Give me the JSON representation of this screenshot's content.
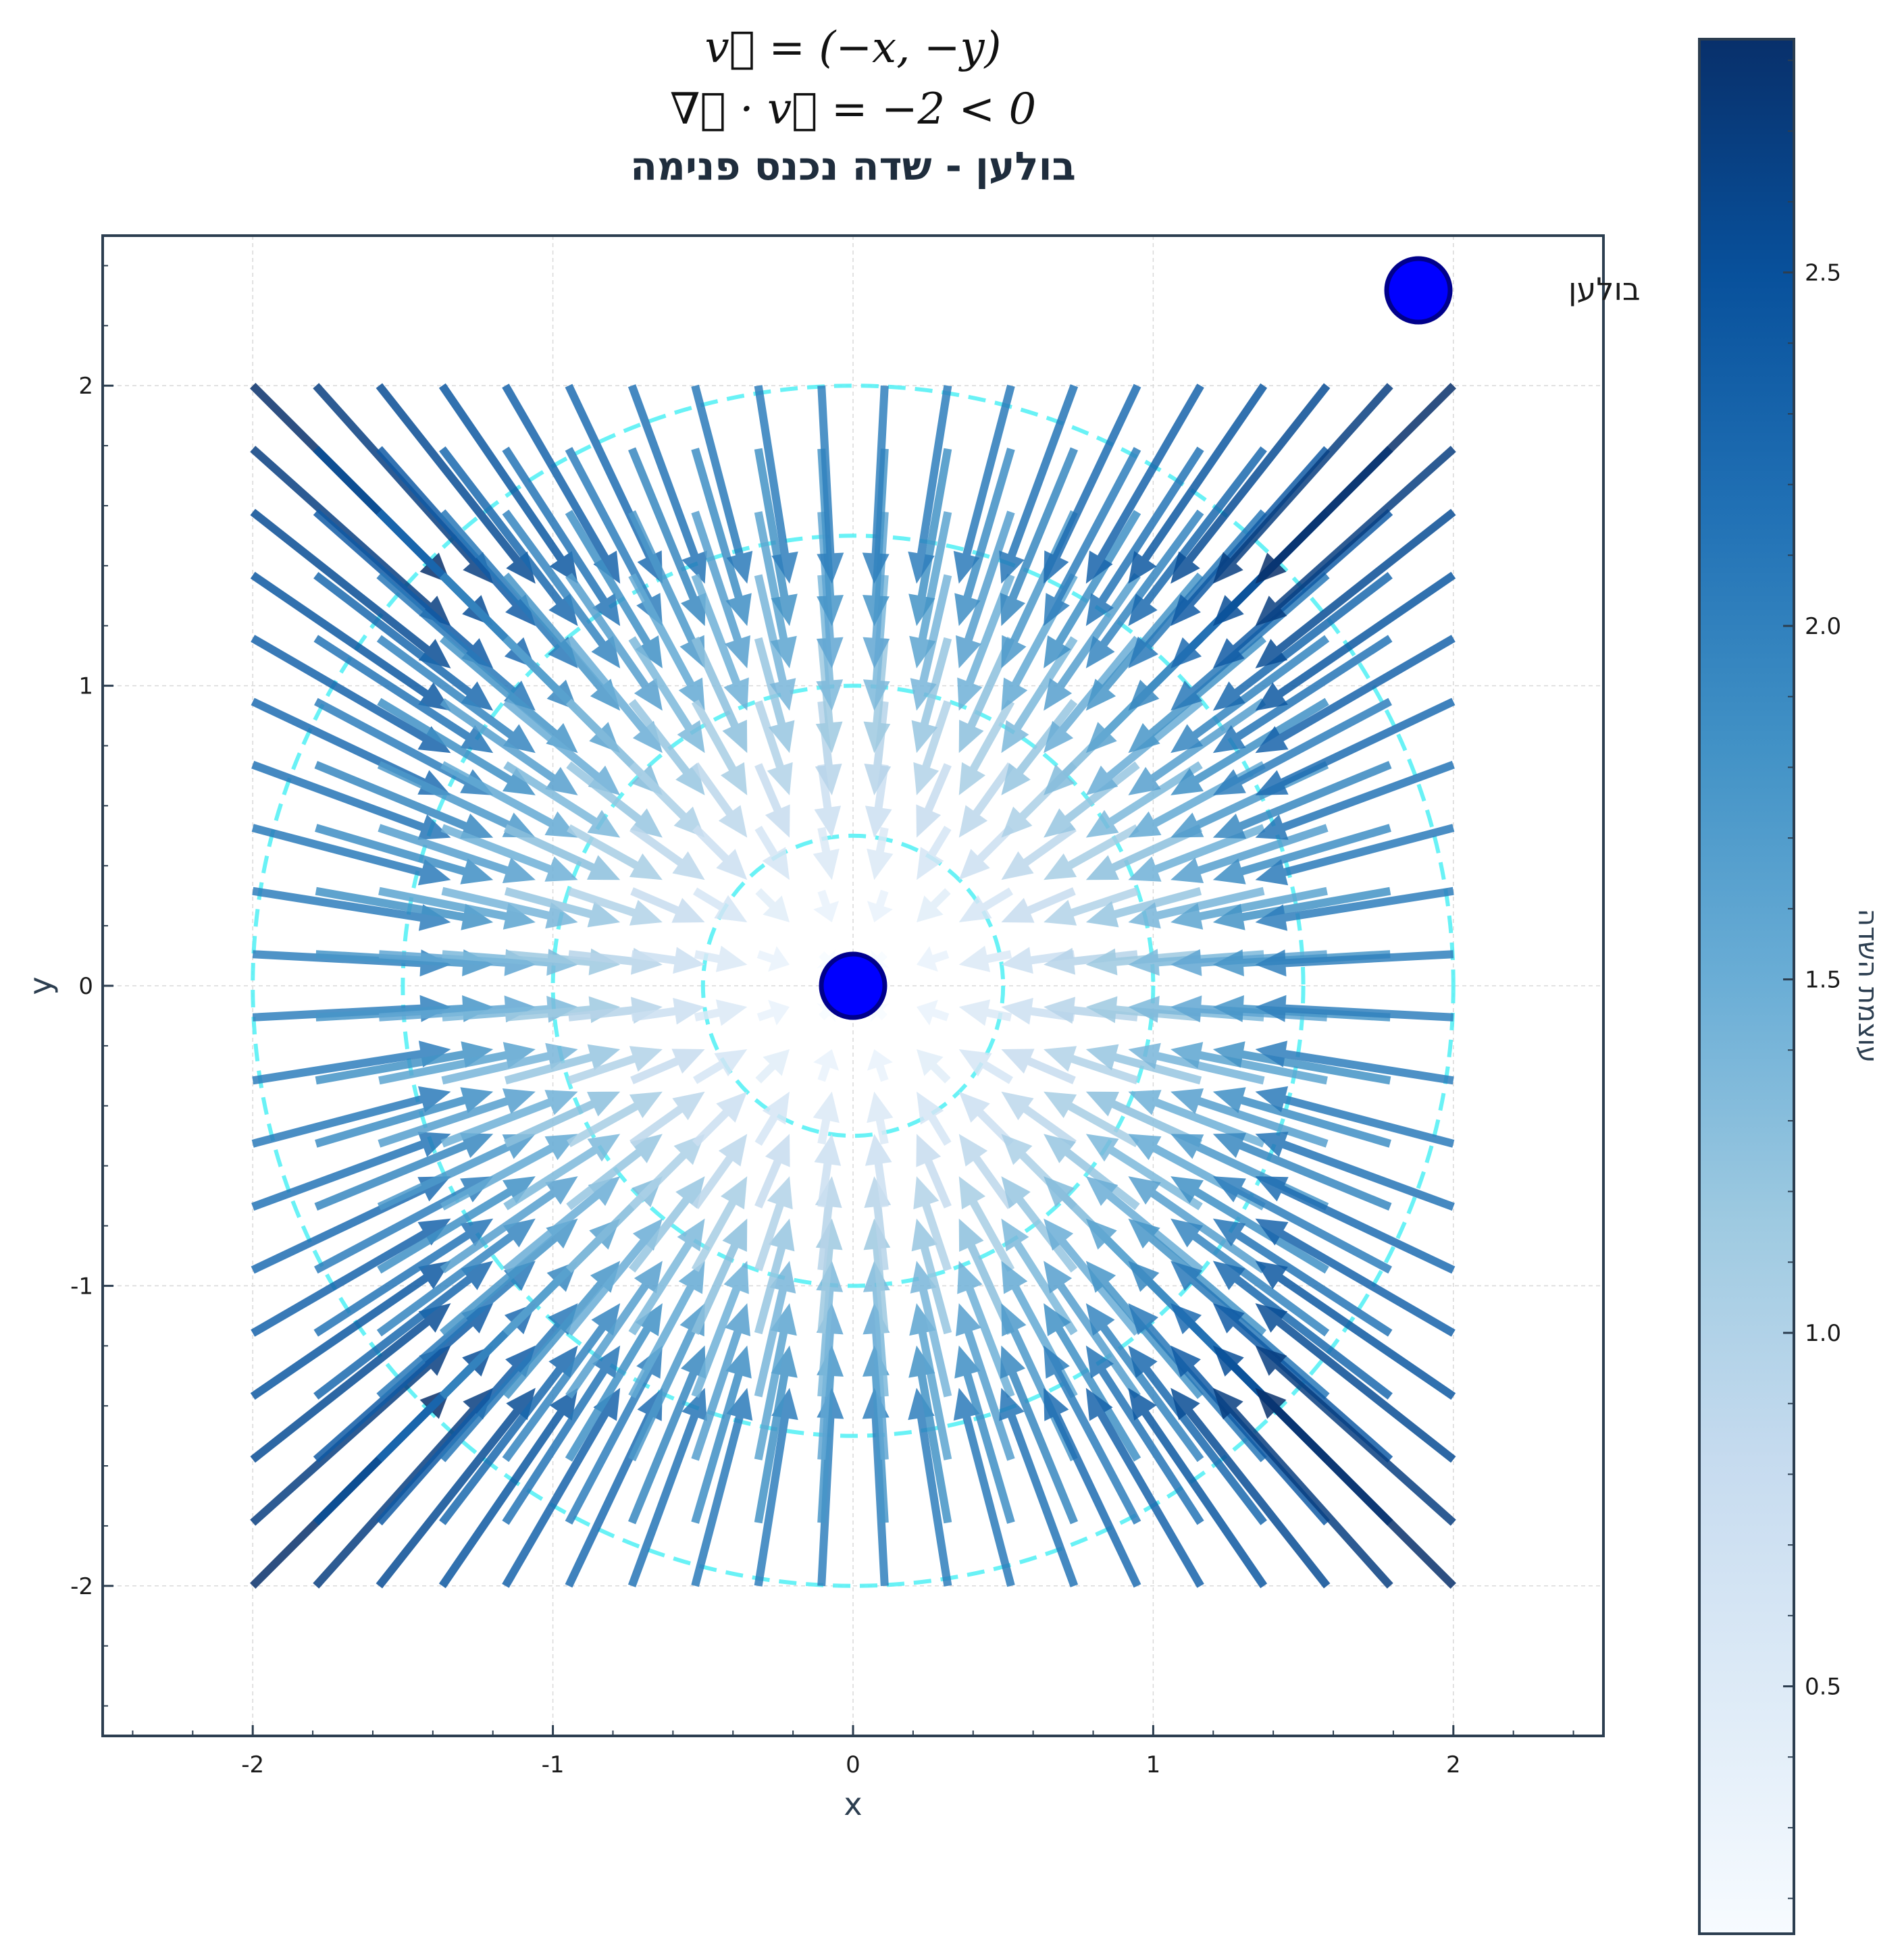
{
  "chart_data": {
    "type": "quiver",
    "title_lines": [
      "v⃗ = (−x, −y)",
      "∇⃗ · v⃗ = −2 < 0",
      "בולען - שדה נכנס פנימה"
    ],
    "xlabel": "x",
    "ylabel": "y",
    "xlim": [
      -2.5,
      2.5
    ],
    "ylim": [
      -2.5,
      2.5
    ],
    "x_ticks": [
      -2,
      -1,
      0,
      1,
      2
    ],
    "y_ticks": [
      -2,
      -1,
      0,
      1,
      2
    ],
    "x_tick_labels": [
      "-2",
      "-1",
      "0",
      "1",
      "2"
    ],
    "y_tick_labels": [
      "-2",
      "-1",
      "0",
      "1",
      "2"
    ],
    "grid": true,
    "field": {
      "vx": "-x",
      "vy": "-y"
    },
    "grid_points": {
      "x_start": -2,
      "x_end": 2,
      "y_start": -2,
      "y_end": 2,
      "count": 20
    },
    "dashed_circles_radii": [
      0.5,
      1.0,
      1.5,
      2.0
    ],
    "dashed_circle_color": "#4ff0f5",
    "sink_point": {
      "x": 0,
      "y": 0,
      "color": "#0000ff",
      "edge_color": "#00008b"
    },
    "legend": {
      "label": "בולען",
      "placement": "top-right"
    },
    "colorbar": {
      "label": "עוצמת השדה",
      "min": 0.15,
      "max": 2.83,
      "ticks": [
        0.5,
        1.0,
        1.5,
        2.0,
        2.5
      ],
      "tick_labels": [
        "0.5",
        "1.0",
        "1.5",
        "2.0",
        "2.5"
      ],
      "colormap": "Blues",
      "colors": [
        "#f7fbff",
        "#deebf7",
        "#c6dbef",
        "#9ecae1",
        "#6baed6",
        "#4292c6",
        "#2171b5",
        "#08519c",
        "#08306b"
      ]
    }
  }
}
